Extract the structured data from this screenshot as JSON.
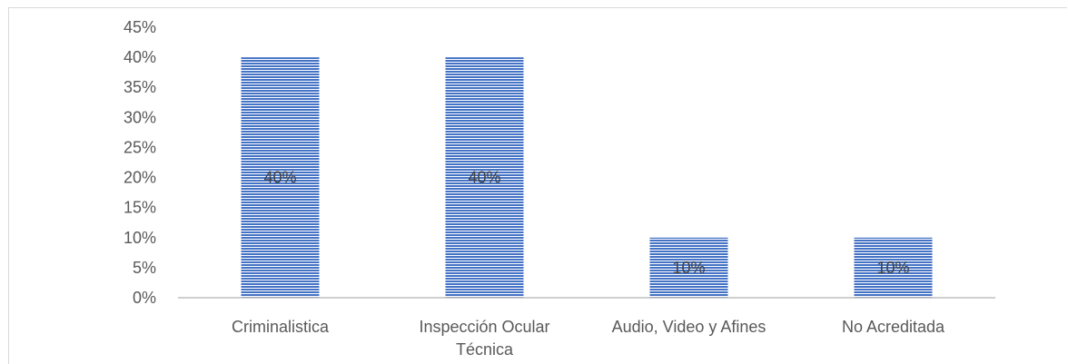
{
  "chart_data": {
    "type": "bar",
    "categories": [
      "Criminalistica",
      "Inspección Ocular Técnica",
      "Audio, Video y Afines",
      "No Acreditada"
    ],
    "category_lines": [
      [
        "Criminalistica"
      ],
      [
        "Inspección Ocular",
        "Técnica"
      ],
      [
        "Audio, Video y Afines"
      ],
      [
        "No Acreditada"
      ]
    ],
    "values": [
      40,
      40,
      10,
      10
    ],
    "data_labels": [
      "40%",
      "40%",
      "10%",
      "10%"
    ],
    "yticks": [
      "0%",
      "5%",
      "10%",
      "15%",
      "20%",
      "25%",
      "30%",
      "35%",
      "40%",
      "45%"
    ],
    "ylim": [
      0,
      45
    ],
    "grid": false,
    "legend": "none",
    "bar_color": "#4472c4",
    "bar_pattern": "horizontal-stripes"
  }
}
